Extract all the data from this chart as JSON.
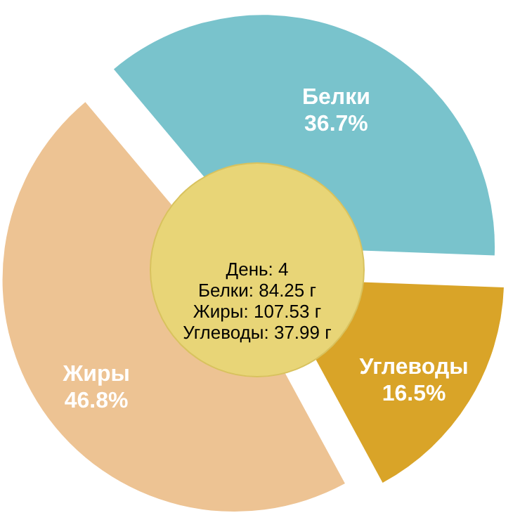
{
  "chart_data": {
    "type": "pie",
    "categories": [
      "Белки",
      "Углеводы",
      "Жиры"
    ],
    "values": [
      36.7,
      16.5,
      46.8
    ],
    "colors": [
      "#79c3cc",
      "#d9a428",
      "#edc393"
    ],
    "value_labels": [
      "36.7%",
      "16.5%",
      "46.8%"
    ],
    "annotations": [
      "День: 4",
      "Белки: 84.25 г",
      "Жиры: 107.53 г",
      "Углеводы: 37.99 г"
    ]
  }
}
